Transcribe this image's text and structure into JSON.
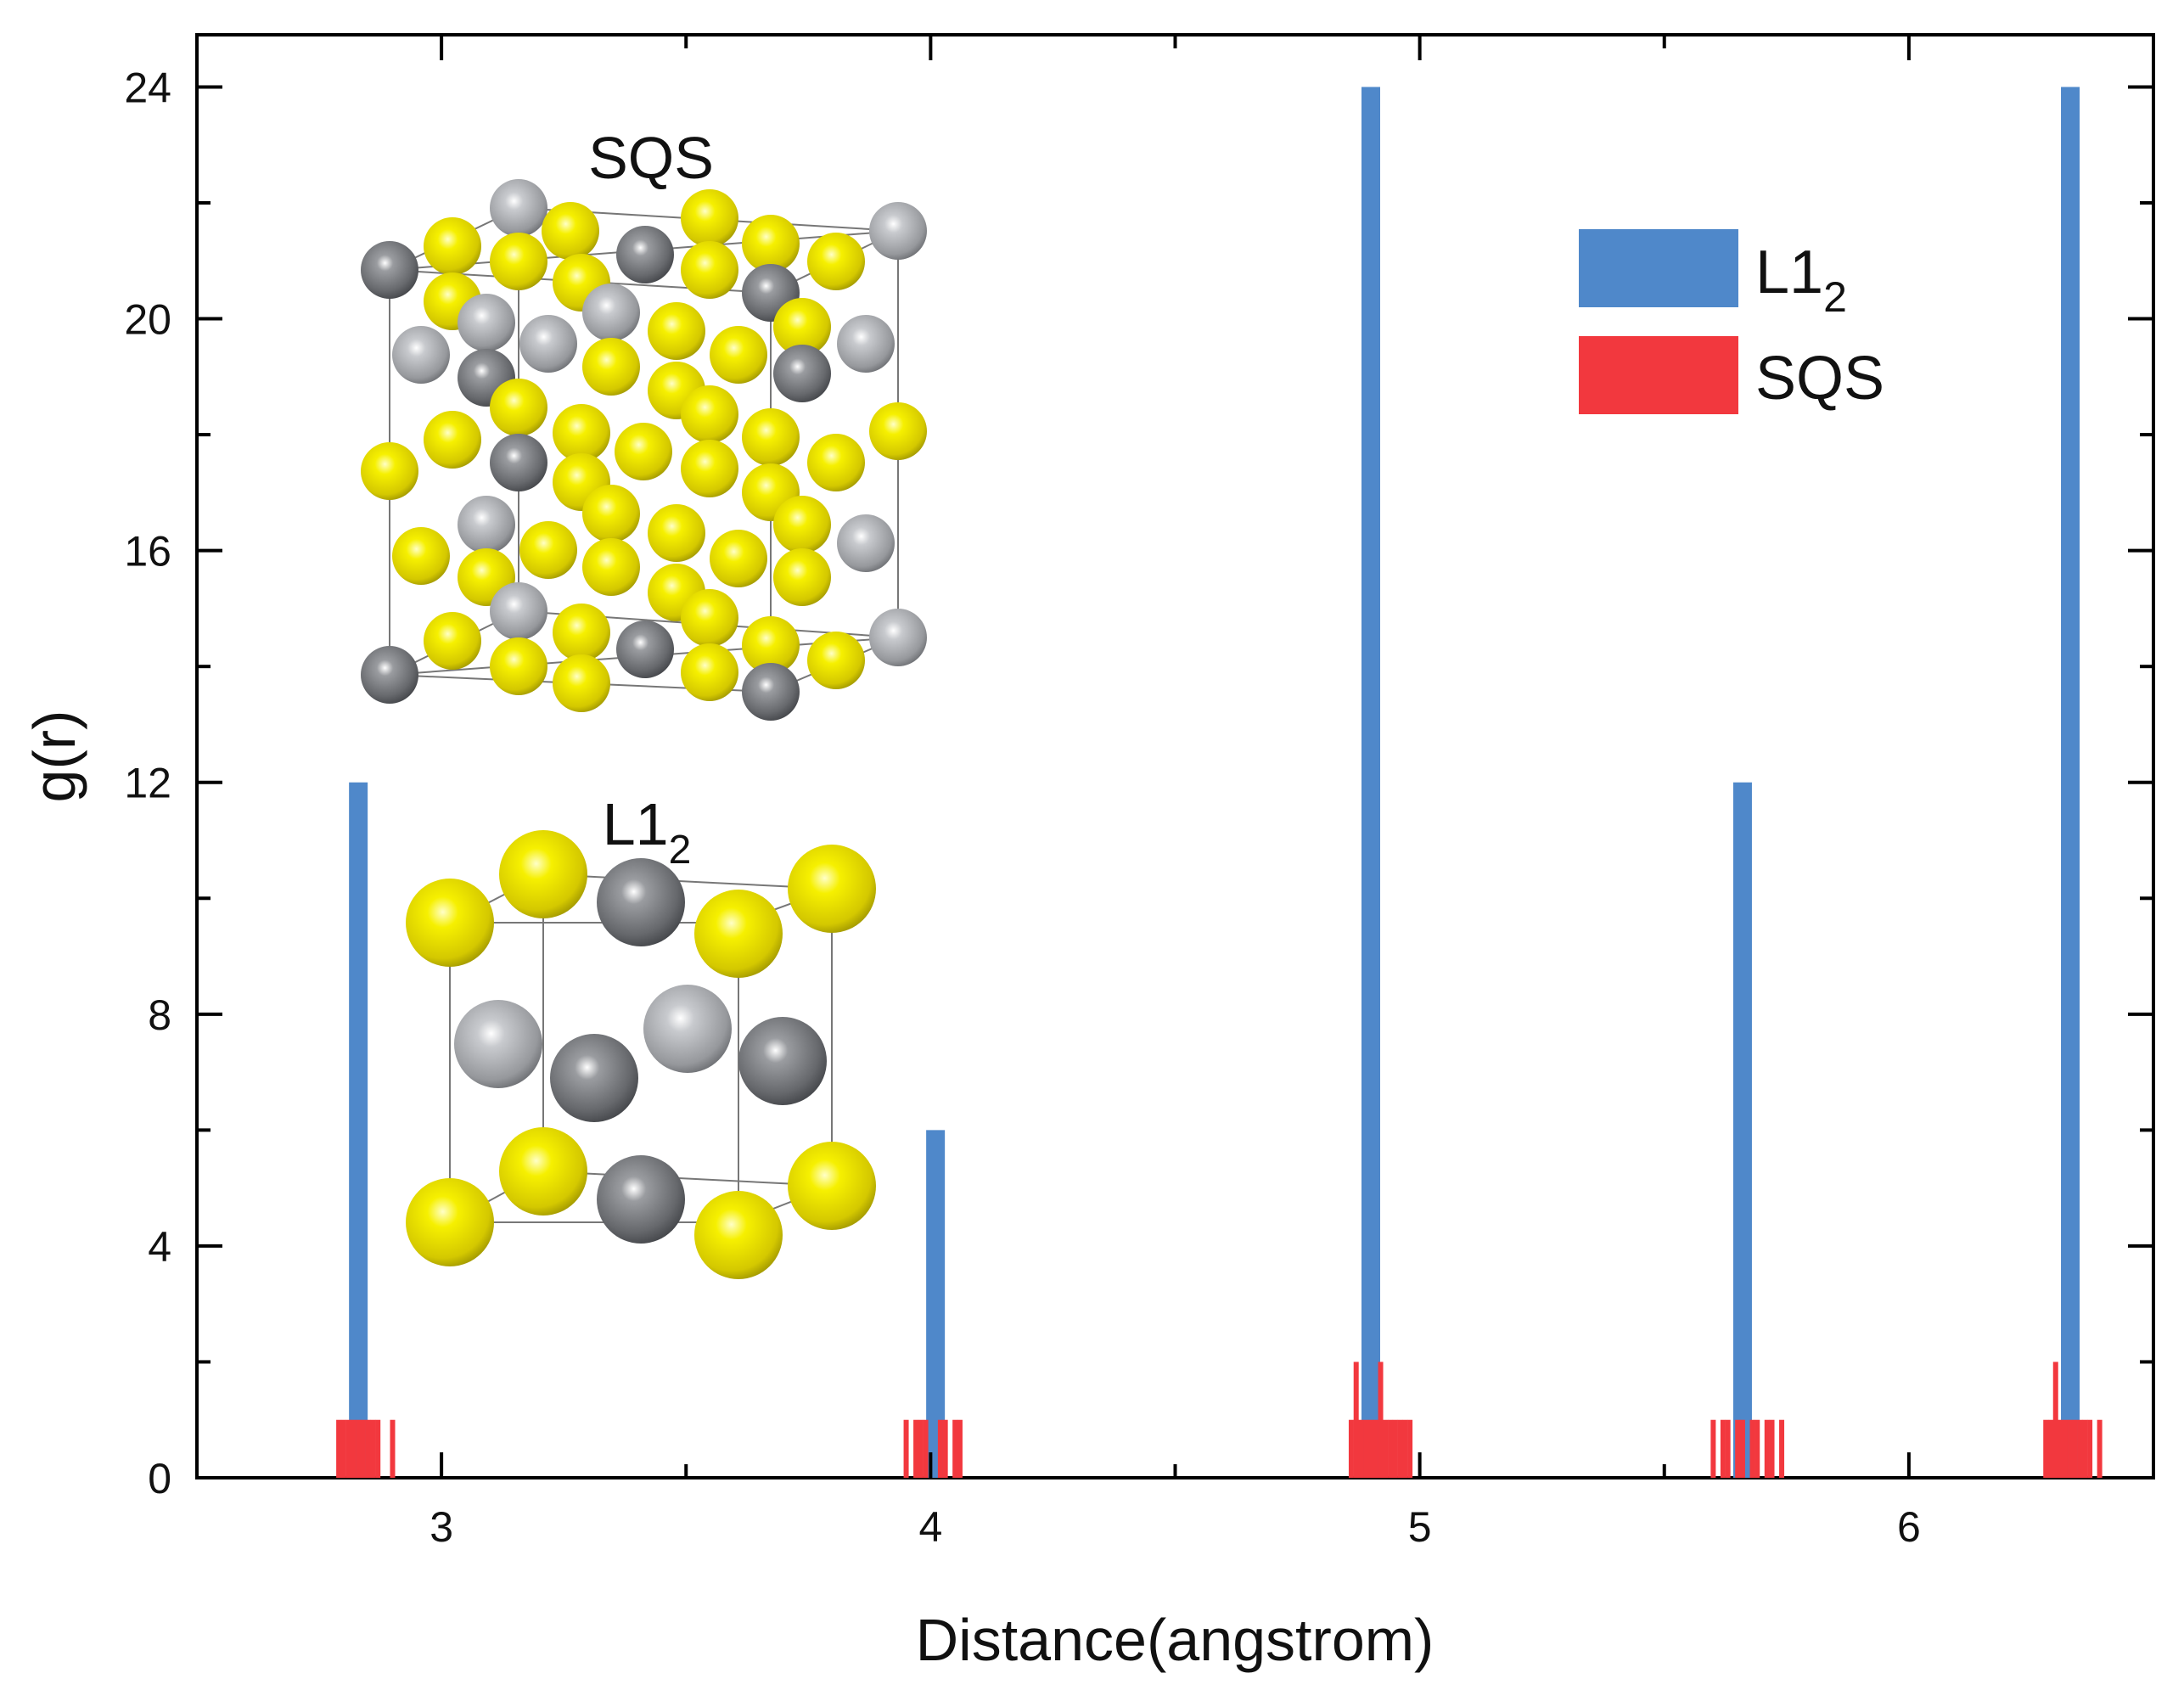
{
  "chart_data": {
    "type": "bar",
    "title": "",
    "xlabel": "Distance(angstrom)",
    "ylabel": "g(r)",
    "xlim": [
      2.5,
      6.5
    ],
    "ylim": [
      0,
      24.9
    ],
    "xticks": [
      3,
      4,
      5,
      6
    ],
    "yticks": [
      0,
      4,
      8,
      12,
      16,
      20,
      24
    ],
    "legend_position": "top-right",
    "series": [
      {
        "name_main": "L1",
        "name_sub": "2",
        "color": "#4F88CA",
        "x": [
          2.83,
          4.01,
          4.9,
          5.66,
          6.33
        ],
        "values": [
          12,
          6,
          24,
          12,
          24
        ]
      },
      {
        "name": "SQS",
        "color": "#F2383E",
        "x": [
          2.79,
          2.8,
          2.81,
          2.82,
          2.83,
          2.84,
          2.85,
          2.86,
          2.87,
          2.9,
          3.95,
          3.97,
          3.98,
          3.99,
          4.02,
          4.03,
          4.05,
          4.06,
          4.86,
          4.87,
          4.88,
          4.89,
          4.9,
          4.91,
          4.92,
          4.93,
          4.94,
          4.95,
          4.96,
          4.97,
          4.98,
          5.6,
          5.62,
          5.63,
          5.65,
          5.66,
          5.68,
          5.69,
          5.71,
          5.72,
          5.74,
          6.28,
          6.29,
          6.3,
          6.31,
          6.32,
          6.33,
          6.34,
          6.35,
          6.36,
          6.37,
          6.39
        ],
        "values": [
          1,
          1,
          1,
          1,
          1,
          1,
          1,
          1,
          1,
          1,
          1,
          1,
          1,
          1,
          1,
          1,
          1,
          1,
          1,
          2,
          1,
          1,
          1,
          1,
          2,
          1,
          1,
          1,
          1,
          1,
          1,
          1,
          1,
          1,
          1,
          1,
          1,
          1,
          1,
          1,
          1,
          1,
          1,
          2,
          1,
          1,
          1,
          1,
          1,
          1,
          1,
          1
        ]
      }
    ],
    "insets": [
      {
        "label": "SQS"
      },
      {
        "label_main": "L1",
        "label_sub": "2"
      }
    ]
  },
  "colors": {
    "gold_atom": "#E8E000",
    "gray_atom_light": "#A8AAAE",
    "gray_atom_dark": "#66686C"
  }
}
